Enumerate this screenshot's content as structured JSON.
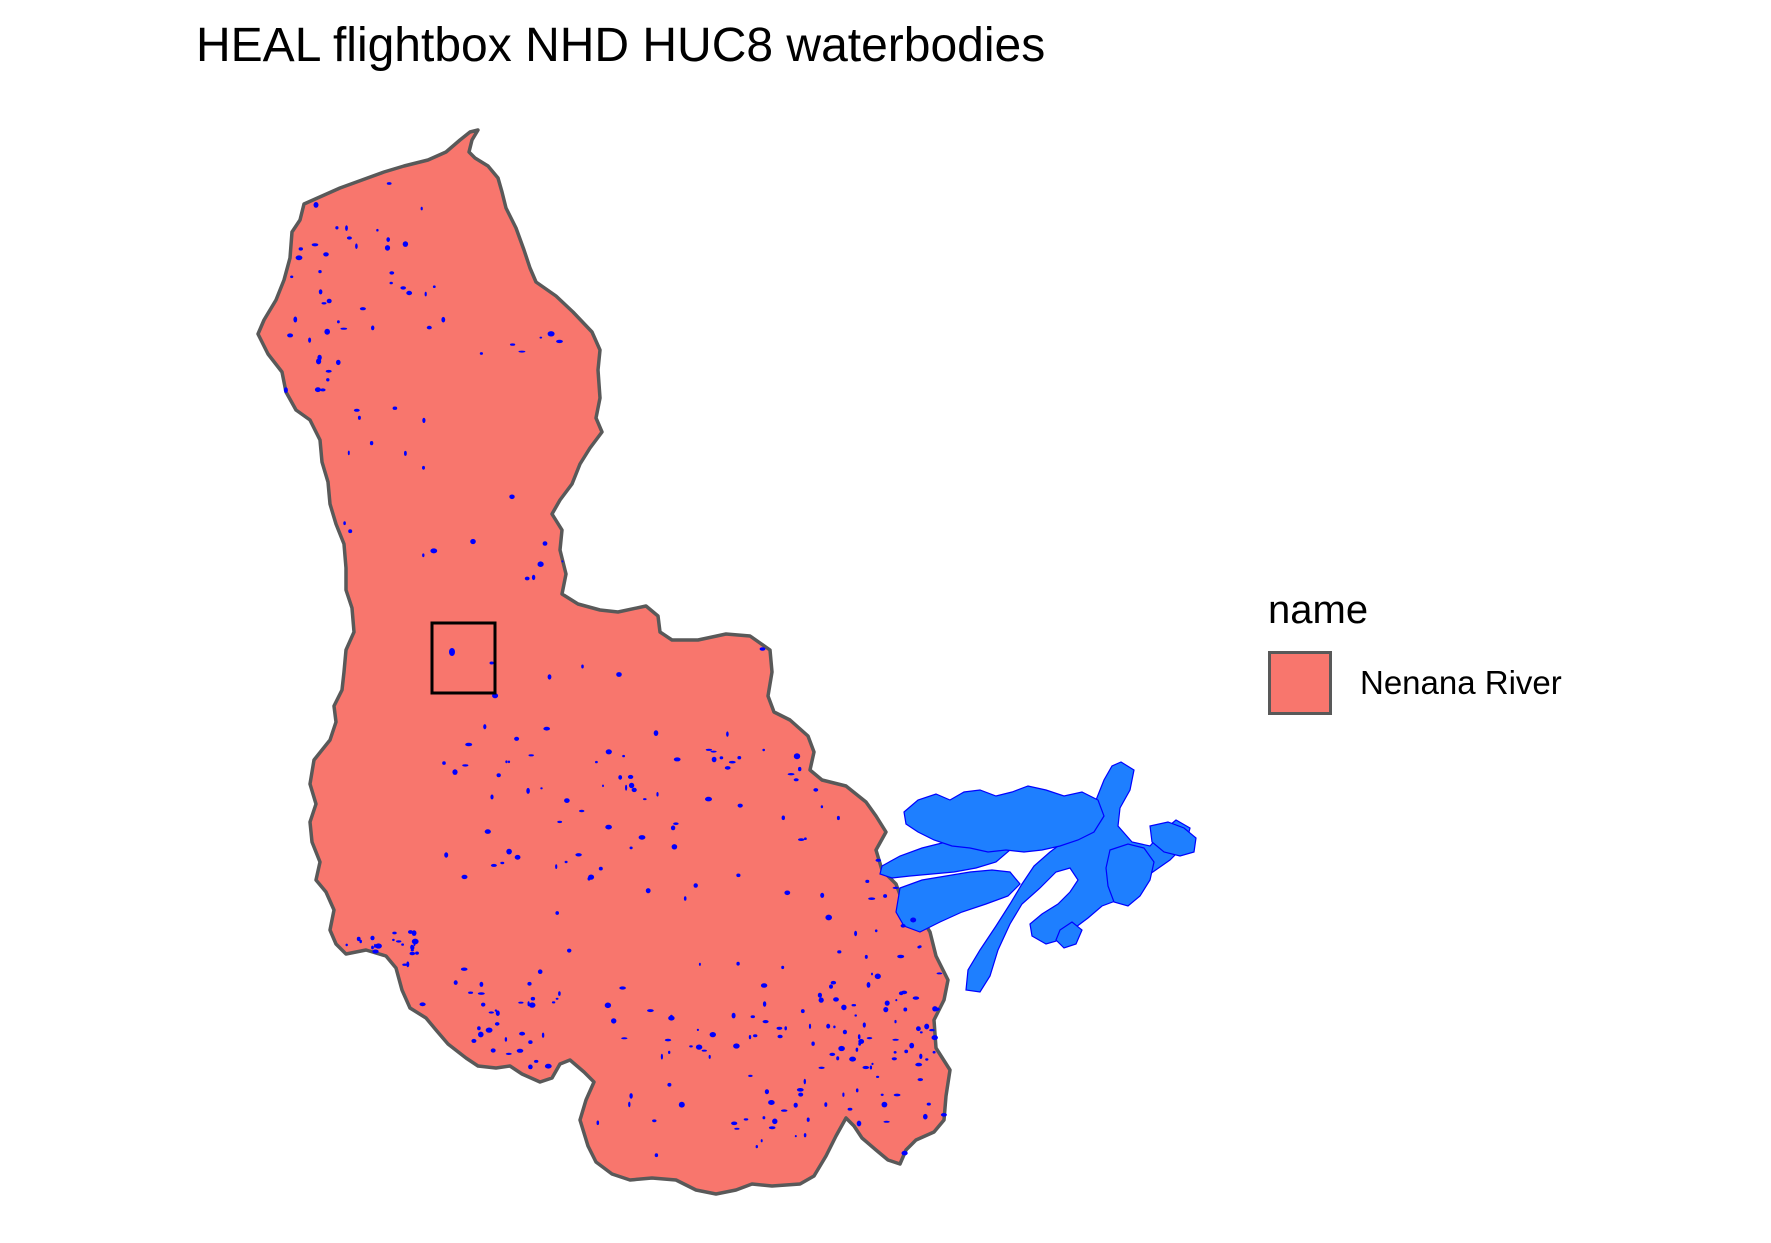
{
  "map": {
    "title": "HEAL flightbox NHD HUC8 waterbodies",
    "basin_fill": "#F8766D",
    "basin_outline": "#595959",
    "waterbody_color": "#0000FF",
    "glacier_color": "#1E7FFF",
    "flightbox_color": "#000000"
  },
  "legend": {
    "title": "name",
    "items": [
      {
        "label": "Nenana River",
        "color": "#F8766D"
      }
    ]
  }
}
